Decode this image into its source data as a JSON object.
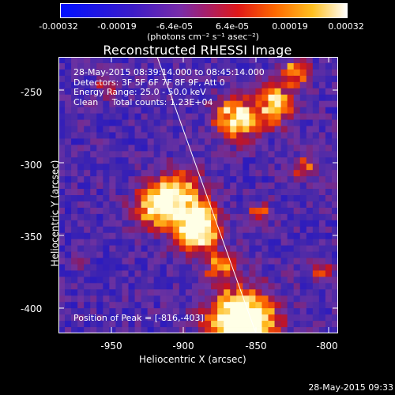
{
  "colorbar": {
    "ticks": [
      "-0.00032",
      "-0.00019",
      "-6.4e-05",
      "6.4e-05",
      "0.00019",
      "0.00032"
    ],
    "unit": "(photons cm⁻² s⁻¹ asec⁻²)",
    "range": [
      -0.00032,
      0.00032
    ]
  },
  "title": "Reconstructed RHESSI Image",
  "info": {
    "line1": "28-May-2015 08:39:14.000 to 08:45:14.000",
    "line2": "Detectors: 3F 5F 6F 7F 8F 9F, Att 0",
    "line3": "Energy Range: 25.0 - 50.0 keV",
    "line4": "Clean     Total counts: 1.23E+04"
  },
  "peak": "Position of Peak = [-816,-403]",
  "axes": {
    "xlabel": "Heliocentric X (arcsec)",
    "ylabel": "Heliocentric Y (arcsec)",
    "xticks": [
      "-950",
      "-900",
      "-850",
      "-800"
    ],
    "yticks": [
      "-250",
      "-300",
      "-350",
      "-400"
    ],
    "xrange": [
      -987,
      -794
    ],
    "yrange": [
      -227,
      -418
    ]
  },
  "limb_line": {
    "from": [
      -923,
      -227
    ],
    "to": [
      -843,
      -418
    ]
  },
  "timestamp": "28-May-2015 09:33",
  "colors": {
    "background": "#000000",
    "text": "#ffffff",
    "limb": "#ffffff"
  }
}
